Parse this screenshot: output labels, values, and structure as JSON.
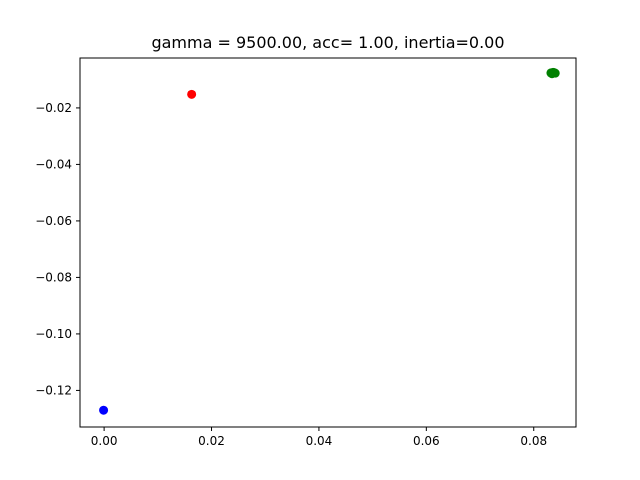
{
  "chart_data": {
    "type": "scatter",
    "title": "gamma = 9500.00, acc= 1.00, inertia=0.00",
    "xlabel": "",
    "ylabel": "",
    "xlim": [
      -0.00449,
      0.08787
    ],
    "ylim": [
      -0.13295,
      -0.00233
    ],
    "grid": false,
    "legend": "none",
    "x_ticks": [
      {
        "value": 0.0,
        "label": "0.00"
      },
      {
        "value": 0.02,
        "label": "0.02"
      },
      {
        "value": 0.04,
        "label": "0.04"
      },
      {
        "value": 0.06,
        "label": "0.06"
      },
      {
        "value": 0.08,
        "label": "0.08"
      }
    ],
    "y_ticks": [
      {
        "value": -0.02,
        "label": "−0.02"
      },
      {
        "value": -0.04,
        "label": "−0.04"
      },
      {
        "value": -0.06,
        "label": "−0.06"
      },
      {
        "value": -0.08,
        "label": "−0.08"
      },
      {
        "value": -0.1,
        "label": "−0.10"
      },
      {
        "value": -0.12,
        "label": "−0.12"
      }
    ],
    "series": [
      {
        "color": "#0000ff",
        "points": [
          {
            "x": -0.0001,
            "y": -0.127
          }
        ]
      },
      {
        "color": "#ff0000",
        "points": [
          {
            "x": 0.0163,
            "y": -0.0152
          }
        ]
      },
      {
        "color": "#008000",
        "points": [
          {
            "x": 0.0832,
            "y": -0.0076
          },
          {
            "x": 0.0836,
            "y": -0.0074
          },
          {
            "x": 0.084,
            "y": -0.0077
          },
          {
            "x": 0.0834,
            "y": -0.0079
          },
          {
            "x": 0.0838,
            "y": -0.0075
          }
        ]
      }
    ]
  }
}
